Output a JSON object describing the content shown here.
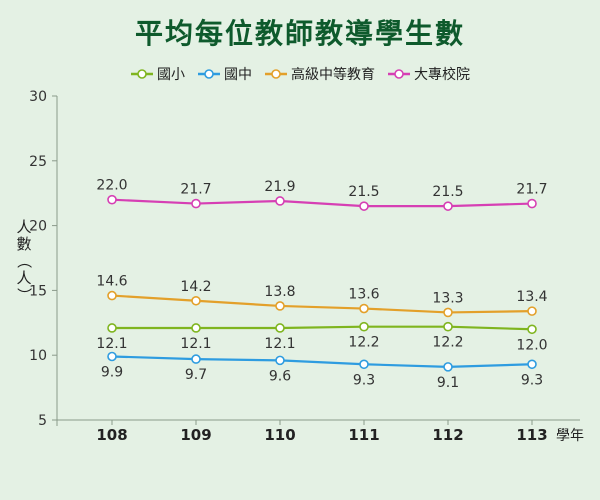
{
  "chart_data": {
    "type": "line",
    "title": "平均每位教師教導學生數",
    "ylabel": "人數（人）",
    "xlabel_suffix": "學年",
    "categories": [
      "108",
      "109",
      "110",
      "111",
      "112",
      "113"
    ],
    "ylim": [
      5,
      30
    ],
    "yticks": [
      5,
      10,
      15,
      20,
      25,
      30
    ],
    "grid": "horizontal-none",
    "legend_position": "top-center",
    "series": [
      {
        "name": "國小",
        "values": [
          12.1,
          12.1,
          12.1,
          12.2,
          12.2,
          12.0
        ],
        "labels": [
          "12.1",
          "12.1",
          "12.1",
          "12.2",
          "12.2",
          "12.0"
        ],
        "color": "#7fb51f",
        "marker_fill": "#ffffff",
        "label_pos": "below"
      },
      {
        "name": "國中",
        "values": [
          9.9,
          9.7,
          9.6,
          9.3,
          9.1,
          9.3
        ],
        "labels": [
          "9.9",
          "9.7",
          "9.6",
          "9.3",
          "9.1",
          "9.3"
        ],
        "color": "#2e9ce0",
        "marker_fill": "#ffffff",
        "label_pos": "below"
      },
      {
        "name": "高級中等教育",
        "values": [
          14.6,
          14.2,
          13.8,
          13.6,
          13.3,
          13.4
        ],
        "labels": [
          "14.6",
          "14.2",
          "13.8",
          "13.6",
          "13.3",
          "13.4"
        ],
        "color": "#e3a02a",
        "marker_fill": "#ffffff",
        "label_pos": "above"
      },
      {
        "name": "大專校院",
        "values": [
          22.0,
          21.7,
          21.9,
          21.5,
          21.5,
          21.7
        ],
        "labels": [
          "22.0",
          "21.7",
          "21.9",
          "21.5",
          "21.5",
          "21.7"
        ],
        "color": "#d63fb4",
        "marker_fill": "#ffffff",
        "label_pos": "above"
      }
    ]
  }
}
